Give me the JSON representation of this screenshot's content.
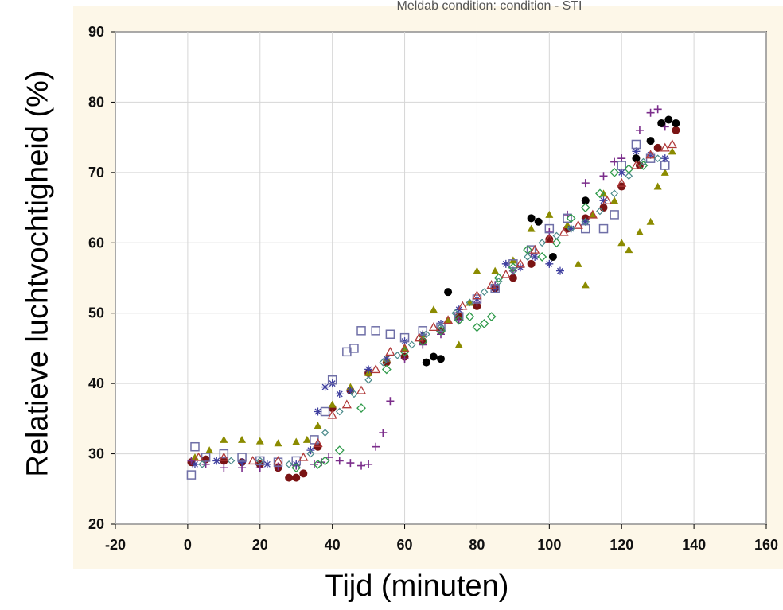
{
  "chart_data": {
    "type": "scatter",
    "title": "",
    "title_partial": "Meldab condition: condition - STI",
    "xlabel": "Tijd (minuten)",
    "ylabel": "Relatieve luchtvochtigheid (%)",
    "xlim": [
      -20,
      160
    ],
    "ylim": [
      20,
      90
    ],
    "x_ticks": [
      "-20",
      "0",
      "20",
      "40",
      "60",
      "80",
      "100",
      "120",
      "140",
      "160"
    ],
    "y_ticks": [
      "20",
      "30",
      "40",
      "50",
      "60",
      "70",
      "80",
      "90"
    ],
    "grid": true,
    "legend": "none",
    "colors": {
      "panel_bg": "#fdf7e8",
      "plot_bg": "#ffffff",
      "grid": "#d6d6d6",
      "series": [
        "#7a1414",
        "#8b8b00",
        "#7b2d8b",
        "#3f3f9f",
        "#6f6fa7",
        "#000000",
        "#2f9a4a",
        "#b03a3a",
        "#4a8a8a"
      ]
    },
    "series": [
      {
        "marker": "circle",
        "color": "#7a1414",
        "points": [
          [
            1,
            28.8
          ],
          [
            5,
            29.2
          ],
          [
            10,
            29.0
          ],
          [
            15,
            28.8
          ],
          [
            20,
            28.5
          ],
          [
            25,
            28.0
          ],
          [
            28,
            26.6
          ],
          [
            30,
            26.6
          ],
          [
            32,
            27.2
          ],
          [
            36,
            31.0
          ],
          [
            40,
            36.5
          ],
          [
            45,
            39.0
          ],
          [
            50,
            41.5
          ],
          [
            55,
            43.0
          ],
          [
            60,
            43.8
          ],
          [
            65,
            46.0
          ],
          [
            70,
            47.5
          ],
          [
            75,
            49.5
          ],
          [
            80,
            51.0
          ],
          [
            85,
            53.5
          ],
          [
            90,
            55.0
          ],
          [
            95,
            57.0
          ],
          [
            100,
            60.5
          ],
          [
            105,
            62.0
          ],
          [
            110,
            63.5
          ],
          [
            115,
            65.0
          ],
          [
            120,
            68.0
          ],
          [
            125,
            71.0
          ],
          [
            130,
            73.5
          ],
          [
            135,
            76.0
          ]
        ]
      },
      {
        "marker": "triangle",
        "color": "#8b8b00",
        "points": [
          [
            2,
            29.5
          ],
          [
            6,
            30.5
          ],
          [
            10,
            32.0
          ],
          [
            15,
            32.0
          ],
          [
            20,
            31.8
          ],
          [
            25,
            31.5
          ],
          [
            30,
            31.7
          ],
          [
            33,
            32.0
          ],
          [
            36,
            34.0
          ],
          [
            40,
            37.0
          ],
          [
            45,
            39.5
          ],
          [
            50,
            41.5
          ],
          [
            55,
            43.5
          ],
          [
            60,
            45.0
          ],
          [
            65,
            47.0
          ],
          [
            68,
            50.5
          ],
          [
            72,
            49.0
          ],
          [
            75,
            45.5
          ],
          [
            78,
            51.5
          ],
          [
            80,
            56.0
          ],
          [
            85,
            56.0
          ],
          [
            90,
            57.5
          ],
          [
            95,
            62.0
          ],
          [
            100,
            64.0
          ],
          [
            105,
            62.5
          ],
          [
            108,
            57.0
          ],
          [
            110,
            54.0
          ],
          [
            112,
            64.0
          ],
          [
            115,
            67.0
          ],
          [
            118,
            66.0
          ],
          [
            120,
            60.0
          ],
          [
            122,
            59.0
          ],
          [
            125,
            61.5
          ],
          [
            128,
            63.0
          ],
          [
            130,
            68.0
          ],
          [
            132,
            70.0
          ],
          [
            134,
            73.0
          ]
        ]
      },
      {
        "marker": "plus",
        "color": "#7b2d8b",
        "points": [
          [
            1,
            29.0
          ],
          [
            5,
            28.5
          ],
          [
            10,
            28.0
          ],
          [
            15,
            28.0
          ],
          [
            20,
            28.0
          ],
          [
            25,
            28.2
          ],
          [
            30,
            28.3
          ],
          [
            35,
            28.5
          ],
          [
            37,
            28.8
          ],
          [
            39,
            29.5
          ],
          [
            42,
            29.0
          ],
          [
            45,
            28.7
          ],
          [
            48,
            28.3
          ],
          [
            50,
            28.5
          ],
          [
            52,
            31.0
          ],
          [
            54,
            33.0
          ],
          [
            56,
            37.5
          ],
          [
            60,
            43.5
          ],
          [
            65,
            45.5
          ],
          [
            70,
            47.0
          ],
          [
            75,
            49.0
          ],
          [
            80,
            51.5
          ],
          [
            85,
            54.0
          ],
          [
            90,
            56.0
          ],
          [
            95,
            58.5
          ],
          [
            100,
            61.5
          ],
          [
            105,
            64.0
          ],
          [
            110,
            68.5
          ],
          [
            115,
            69.5
          ],
          [
            118,
            71.5
          ],
          [
            120,
            72.0
          ],
          [
            125,
            76.0
          ],
          [
            128,
            78.5
          ],
          [
            130,
            79.0
          ],
          [
            132,
            76.5
          ]
        ]
      },
      {
        "marker": "asterisk",
        "color": "#3f3f9f",
        "points": [
          [
            2,
            28.5
          ],
          [
            8,
            29.0
          ],
          [
            15,
            28.8
          ],
          [
            22,
            28.5
          ],
          [
            30,
            28.5
          ],
          [
            34,
            30.5
          ],
          [
            36,
            36.0
          ],
          [
            38,
            39.5
          ],
          [
            40,
            40.0
          ],
          [
            42,
            38.5
          ],
          [
            45,
            39.0
          ],
          [
            50,
            42.0
          ],
          [
            55,
            43.5
          ],
          [
            60,
            46.0
          ],
          [
            65,
            47.0
          ],
          [
            70,
            48.5
          ],
          [
            75,
            50.5
          ],
          [
            80,
            52.0
          ],
          [
            85,
            53.5
          ],
          [
            88,
            57.0
          ],
          [
            92,
            56.5
          ],
          [
            96,
            58.0
          ],
          [
            100,
            57.0
          ],
          [
            103,
            56.0
          ],
          [
            106,
            62.0
          ],
          [
            110,
            63.0
          ],
          [
            115,
            66.0
          ],
          [
            120,
            70.0
          ],
          [
            124,
            73.0
          ],
          [
            128,
            72.5
          ],
          [
            132,
            72.0
          ]
        ]
      },
      {
        "marker": "square",
        "color": "#6f6fa7",
        "points": [
          [
            1,
            27.0
          ],
          [
            2,
            31.0
          ],
          [
            5,
            29.5
          ],
          [
            10,
            30.0
          ],
          [
            15,
            29.5
          ],
          [
            20,
            29.0
          ],
          [
            25,
            28.8
          ],
          [
            30,
            29.0
          ],
          [
            35,
            32.0
          ],
          [
            38,
            36.0
          ],
          [
            40,
            40.5
          ],
          [
            44,
            44.5
          ],
          [
            46,
            45.0
          ],
          [
            48,
            47.5
          ],
          [
            52,
            47.5
          ],
          [
            56,
            47.0
          ],
          [
            60,
            46.5
          ],
          [
            65,
            47.5
          ],
          [
            70,
            48.0
          ],
          [
            75,
            49.5
          ],
          [
            80,
            52.0
          ],
          [
            85,
            53.5
          ],
          [
            90,
            57.0
          ],
          [
            95,
            59.0
          ],
          [
            100,
            62.0
          ],
          [
            105,
            63.5
          ],
          [
            110,
            62.0
          ],
          [
            115,
            62.0
          ],
          [
            118,
            64.0
          ],
          [
            120,
            71.0
          ],
          [
            124,
            74.0
          ],
          [
            128,
            72.0
          ],
          [
            132,
            71.0
          ]
        ]
      },
      {
        "marker": "circle",
        "color": "#000000",
        "points": [
          [
            66,
            43.0
          ],
          [
            68,
            43.8
          ],
          [
            70,
            43.5
          ],
          [
            72,
            53.0
          ],
          [
            95,
            63.5
          ],
          [
            97,
            63.0
          ],
          [
            101,
            58.0
          ],
          [
            110,
            66.0
          ],
          [
            124,
            72.0
          ],
          [
            128,
            74.5
          ],
          [
            131,
            77.0
          ],
          [
            133,
            77.5
          ],
          [
            135,
            77.0
          ]
        ]
      },
      {
        "marker": "diamond",
        "color": "#2f9a4a",
        "points": [
          [
            30,
            28.0
          ],
          [
            36,
            28.5
          ],
          [
            38,
            29.0
          ],
          [
            42,
            30.5
          ],
          [
            48,
            36.5
          ],
          [
            55,
            42.0
          ],
          [
            60,
            44.5
          ],
          [
            65,
            46.0
          ],
          [
            70,
            47.5
          ],
          [
            75,
            49.0
          ],
          [
            78,
            49.5
          ],
          [
            80,
            48.0
          ],
          [
            82,
            48.5
          ],
          [
            84,
            49.5
          ],
          [
            86,
            55.0
          ],
          [
            90,
            56.5
          ],
          [
            94,
            59.0
          ],
          [
            98,
            58.0
          ],
          [
            102,
            60.0
          ],
          [
            106,
            63.5
          ],
          [
            110,
            65.0
          ],
          [
            114,
            67.0
          ],
          [
            118,
            70.0
          ],
          [
            122,
            70.5
          ],
          [
            126,
            71.0
          ]
        ]
      },
      {
        "marker": "triangle-open",
        "color": "#b03a3a",
        "points": [
          [
            3,
            29.5
          ],
          [
            10,
            29.5
          ],
          [
            18,
            29.0
          ],
          [
            25,
            29.0
          ],
          [
            32,
            29.5
          ],
          [
            36,
            31.5
          ],
          [
            40,
            35.5
          ],
          [
            44,
            37.0
          ],
          [
            48,
            39.0
          ],
          [
            52,
            42.0
          ],
          [
            56,
            44.5
          ],
          [
            60,
            45.0
          ],
          [
            64,
            46.5
          ],
          [
            68,
            48.0
          ],
          [
            72,
            49.0
          ],
          [
            76,
            51.0
          ],
          [
            80,
            52.5
          ],
          [
            84,
            54.0
          ],
          [
            88,
            55.5
          ],
          [
            92,
            57.0
          ],
          [
            96,
            59.0
          ],
          [
            100,
            60.5
          ],
          [
            104,
            61.5
          ],
          [
            108,
            62.5
          ],
          [
            112,
            64.0
          ],
          [
            116,
            66.0
          ],
          [
            120,
            68.5
          ],
          [
            124,
            71.0
          ],
          [
            128,
            72.5
          ],
          [
            132,
            73.5
          ],
          [
            134,
            74.0
          ]
        ]
      },
      {
        "marker": "diamond-open",
        "color": "#4a8a8a",
        "points": [
          [
            4,
            28.5
          ],
          [
            12,
            29.0
          ],
          [
            20,
            29.0
          ],
          [
            28,
            28.5
          ],
          [
            34,
            30.0
          ],
          [
            38,
            33.0
          ],
          [
            42,
            36.0
          ],
          [
            46,
            38.5
          ],
          [
            50,
            40.5
          ],
          [
            54,
            43.0
          ],
          [
            58,
            44.0
          ],
          [
            62,
            45.5
          ],
          [
            66,
            47.0
          ],
          [
            70,
            48.0
          ],
          [
            74,
            50.0
          ],
          [
            78,
            51.5
          ],
          [
            82,
            53.0
          ],
          [
            86,
            54.5
          ],
          [
            90,
            56.0
          ],
          [
            94,
            58.0
          ],
          [
            98,
            60.0
          ],
          [
            102,
            61.0
          ],
          [
            106,
            62.0
          ],
          [
            110,
            63.0
          ],
          [
            114,
            64.5
          ],
          [
            118,
            67.0
          ],
          [
            122,
            69.5
          ],
          [
            126,
            71.5
          ],
          [
            130,
            72.0
          ]
        ]
      }
    ]
  }
}
